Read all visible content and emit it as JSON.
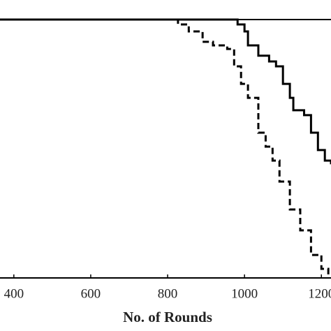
{
  "chart_data": {
    "type": "line",
    "x_label": "No. of Rounds",
    "xlim": [
      364,
      1225
    ],
    "xticks": [
      400,
      600,
      800,
      1000,
      1200
    ],
    "ylim": [
      0,
      100
    ],
    "series": [
      {
        "color": "#000000",
        "dash": false,
        "x": [
          364,
          928,
          982,
          1000,
          1009,
          1036,
          1064,
          1082,
          1100,
          1118,
          1127,
          1155,
          1173,
          1191,
          1209,
          1225
        ],
        "values": [
          100,
          100,
          98.1,
          95.4,
          90,
          86,
          83.8,
          81.9,
          75.1,
          69.7,
          64.9,
          63,
          56.2,
          49.5,
          45.4,
          44
        ]
      },
      {
        "color": "#000000",
        "dash": true,
        "x": [
          364,
          800,
          827,
          855,
          891,
          918,
          955,
          973,
          991,
          1009,
          1036,
          1055,
          1073,
          1091,
          1118,
          1145,
          1173,
          1200,
          1218
        ],
        "values": [
          100,
          100,
          98.1,
          95.4,
          91.4,
          90,
          88.6,
          81.9,
          75.1,
          69.7,
          56.2,
          50.8,
          45.4,
          37.3,
          26.5,
          18.4,
          8.9,
          3.5,
          0
        ]
      }
    ]
  }
}
